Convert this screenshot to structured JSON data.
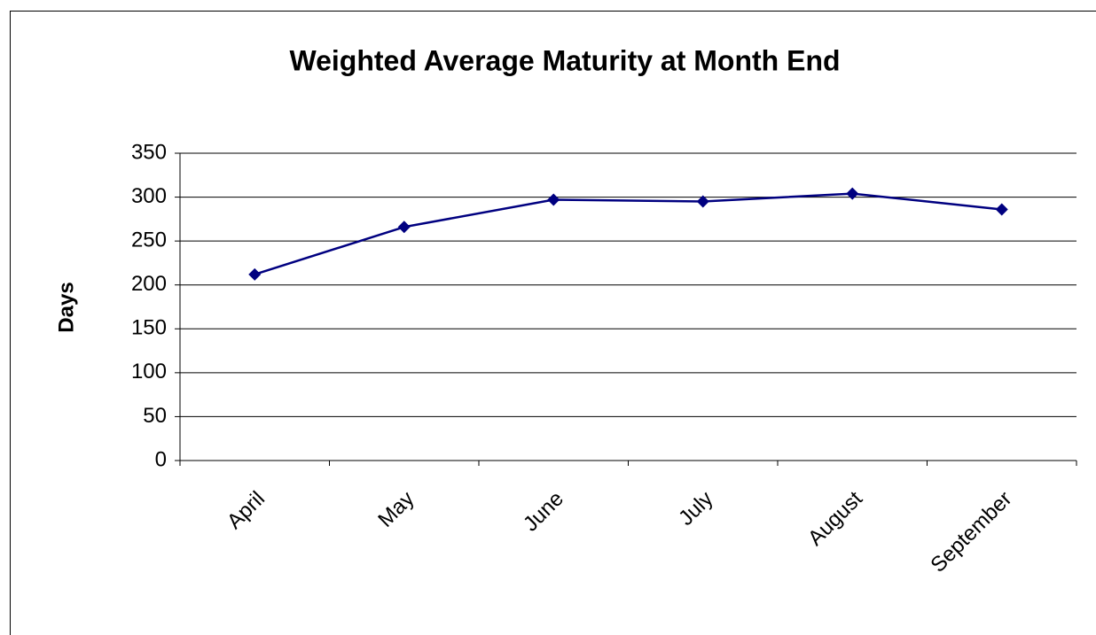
{
  "chart_data": {
    "type": "line",
    "title": "Weighted Average Maturity at Month End",
    "y_label": "Days",
    "categories": [
      "April",
      "May",
      "June",
      "July",
      "August",
      "September"
    ],
    "series": [
      {
        "name": "Weighted Average Maturity",
        "color": "#000080",
        "values": [
          212,
          266,
          297,
          295,
          304,
          286
        ]
      }
    ],
    "ylim": [
      0,
      350
    ],
    "yticks": [
      0,
      50,
      100,
      150,
      200,
      250,
      300,
      350
    ],
    "grid": true
  }
}
